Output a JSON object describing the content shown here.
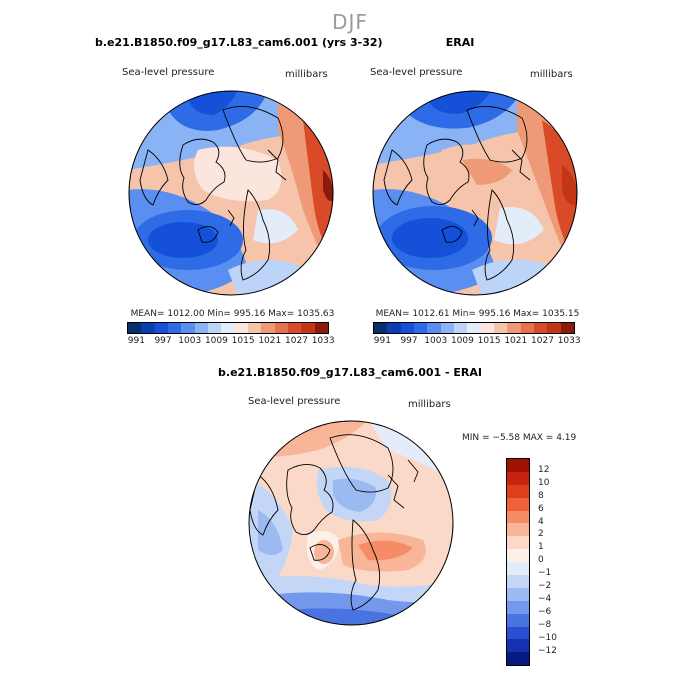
{
  "figure": {
    "title": "DJF"
  },
  "panels": [
    {
      "title": "b.e21.B1850.f09_g17.L83_cam6.001 (yrs 3-32)",
      "variable": "Sea-level pressure",
      "units": "millibars",
      "stats": "MEAN= 1012.00   Min= 995.16   Max= 1035.63"
    },
    {
      "title": "ERAI",
      "variable": "Sea-level pressure",
      "units": "millibars",
      "stats": "MEAN= 1012.61   Min= 995.16   Max= 1035.15"
    },
    {
      "title": "b.e21.B1850.f09_g17.L83_cam6.001 - ERAI",
      "variable": "Sea-level pressure",
      "units": "millibars",
      "stats": "MIN =  −5.58  MAX =   4.19"
    }
  ],
  "abs_colorbar": {
    "colors": [
      "#08306b",
      "#0a3fb0",
      "#1450d8",
      "#2e6be6",
      "#5a8ef0",
      "#8ab3f5",
      "#bcd4f8",
      "#e3ecf9",
      "#fbe5dc",
      "#f6c3ab",
      "#ef9a76",
      "#e6714a",
      "#d94a28",
      "#c23616",
      "#8b1a0a"
    ],
    "tick_labels": [
      "991",
      "997",
      "1003",
      "1009",
      "1015",
      "1021",
      "1027",
      "1033"
    ]
  },
  "diff_colorbar": {
    "colors": [
      "#9e1203",
      "#c8230e",
      "#e03d1c",
      "#f0603a",
      "#f58c67",
      "#f8b598",
      "#fbd9c8",
      "#fdf0e8",
      "#e2ecfa",
      "#c3d6f6",
      "#9bbaf2",
      "#7398ec",
      "#4a73e2",
      "#2a4fd3",
      "#1530b0",
      "#061a80"
    ],
    "tick_labels": [
      "12",
      "10",
      "8",
      "6",
      "4",
      "2",
      "1",
      "0",
      "−1",
      "−2",
      "−4",
      "−6",
      "−8",
      "−10",
      "−12"
    ]
  }
}
